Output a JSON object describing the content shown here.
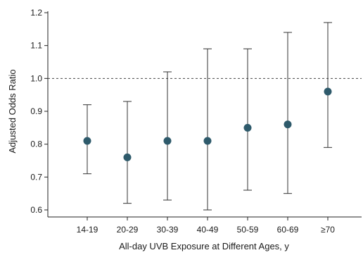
{
  "colors": {
    "point": "#2e5a6b",
    "axis": "#222222",
    "errorbar": "#333333",
    "refline": "#444444"
  },
  "chart_data": {
    "type": "scatter",
    "title": "",
    "xlabel": "All-day UVB Exposure at Different Ages, y",
    "ylabel": "Adjusted Odds Ratio",
    "categories": [
      "14-19",
      "20-29",
      "30-39",
      "40-49",
      "50-59",
      "60-69",
      "≥70"
    ],
    "values": [
      0.81,
      0.76,
      0.81,
      0.81,
      0.85,
      0.86,
      0.96
    ],
    "lower": [
      0.71,
      0.62,
      0.63,
      0.6,
      0.66,
      0.65,
      0.79
    ],
    "upper": [
      0.92,
      0.93,
      1.02,
      1.09,
      1.09,
      1.14,
      1.17
    ],
    "ylim": [
      0.6,
      1.2
    ],
    "yticks": [
      0.6,
      0.7,
      0.8,
      0.9,
      1.0,
      1.1,
      1.2
    ],
    "ytick_labels": [
      "0.6",
      "0.7",
      "0.8",
      "0.9",
      "1.0",
      "1.1",
      "1.2"
    ],
    "reference_line": 1.0,
    "grid": false
  }
}
